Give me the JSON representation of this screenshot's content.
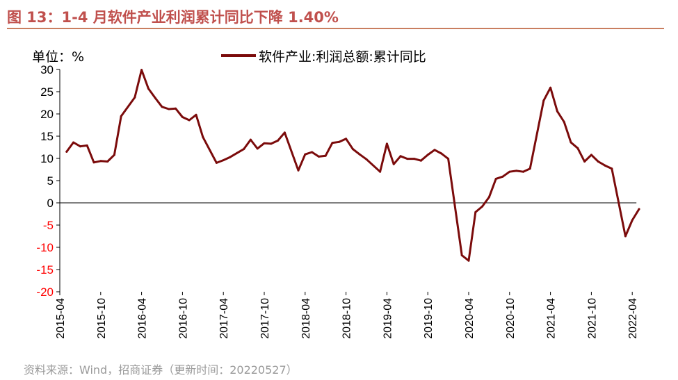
{
  "header": {
    "title": "图 13：1-4 月软件产业利润累计同比下降 1.40%"
  },
  "chart_data": {
    "type": "line",
    "title": "图 13：1-4 月软件产业利润累计同比下降 1.40%",
    "unit_label": "单位：%",
    "xlabel": "",
    "ylabel": "%",
    "ylim": [
      -20,
      30
    ],
    "ytick_step": 5,
    "grid": false,
    "legend_position": "top",
    "negative_tick_color": "#ff0000",
    "line_color": "#7b0b0b",
    "x_tick_labels": [
      "2015-04",
      "2015-10",
      "2016-04",
      "2016-10",
      "2017-04",
      "2017-10",
      "2018-04",
      "2018-10",
      "2019-04",
      "2019-10",
      "2020-04",
      "2020-10",
      "2021-04",
      "2021-10",
      "2022-04"
    ],
    "x_tick_indices": [
      0,
      6,
      12,
      18,
      24,
      30,
      36,
      42,
      48,
      54,
      60,
      66,
      72,
      78,
      84
    ],
    "series": [
      {
        "name": "软件产业:利润总额:累计同比",
        "x": [
          "2015-04",
          "2015-05",
          "2015-06",
          "2015-07",
          "2015-08",
          "2015-09",
          "2015-10",
          "2015-11",
          "2015-12",
          "2016-02",
          "2016-03",
          "2016-04",
          "2016-05",
          "2016-06",
          "2016-07",
          "2016-08",
          "2016-09",
          "2016-10",
          "2016-11",
          "2016-12",
          "2017-02",
          "2017-03",
          "2017-04",
          "2017-05",
          "2017-06",
          "2017-07",
          "2017-08",
          "2017-09",
          "2017-10",
          "2017-11",
          "2017-12",
          "2018-02",
          "2018-03",
          "2018-04",
          "2018-05",
          "2018-06",
          "2018-07",
          "2018-08",
          "2018-09",
          "2018-10",
          "2018-11",
          "2018-12",
          "2019-02",
          "2019-03",
          "2019-04",
          "2019-05",
          "2019-06",
          "2019-07",
          "2019-08",
          "2019-09",
          "2019-10",
          "2019-11",
          "2019-12",
          "2020-02",
          "2020-03",
          "2020-04",
          "2020-05",
          "2020-06",
          "2020-07",
          "2020-08",
          "2020-09",
          "2020-10",
          "2020-11",
          "2020-12",
          "2021-02",
          "2021-03",
          "2021-04",
          "2021-05",
          "2021-06",
          "2021-07",
          "2021-08",
          "2021-09",
          "2021-10",
          "2021-11",
          "2021-12",
          "2022-02",
          "2022-03",
          "2022-04"
        ],
        "x_index": [
          1,
          2,
          3,
          4,
          5,
          6,
          7,
          8,
          9,
          11,
          12,
          13,
          14,
          15,
          16,
          17,
          18,
          19,
          20,
          21,
          23,
          24,
          25,
          26,
          27,
          28,
          29,
          30,
          31,
          32,
          33,
          35,
          36,
          37,
          38,
          39,
          40,
          41,
          42,
          43,
          44,
          45,
          47,
          48,
          49,
          50,
          51,
          52,
          53,
          54,
          55,
          56,
          57,
          59,
          60,
          61,
          62,
          63,
          64,
          65,
          66,
          67,
          68,
          69,
          71,
          72,
          73,
          74,
          75,
          76,
          77,
          78,
          79,
          80,
          81,
          83,
          84,
          85
        ],
        "values": [
          11.5,
          13.6,
          12.7,
          12.9,
          9.1,
          9.4,
          9.3,
          10.8,
          19.5,
          23.7,
          29.9,
          25.7,
          23.6,
          21.6,
          21.1,
          21.2,
          19.3,
          18.6,
          19.8,
          14.8,
          9.0,
          9.6,
          10.3,
          11.2,
          12.1,
          14.2,
          12.2,
          13.4,
          13.3,
          14.0,
          15.8,
          7.3,
          10.9,
          11.4,
          10.4,
          10.6,
          13.5,
          13.7,
          14.4,
          12.1,
          10.9,
          9.8,
          7.0,
          13.3,
          8.7,
          10.5,
          9.9,
          9.9,
          9.5,
          10.8,
          11.9,
          11.1,
          9.9,
          -11.8,
          -13.0,
          -2.1,
          -0.8,
          1.3,
          5.4,
          5.9,
          7.0,
          7.2,
          7.0,
          7.7,
          23.0,
          25.9,
          20.6,
          18.2,
          13.6,
          12.3,
          9.3,
          10.8,
          9.3,
          8.4,
          7.7,
          -7.5,
          -3.9,
          -1.4
        ]
      }
    ]
  },
  "source": {
    "text": "资料来源：Wind，招商证券（更新时间：20220527）"
  }
}
